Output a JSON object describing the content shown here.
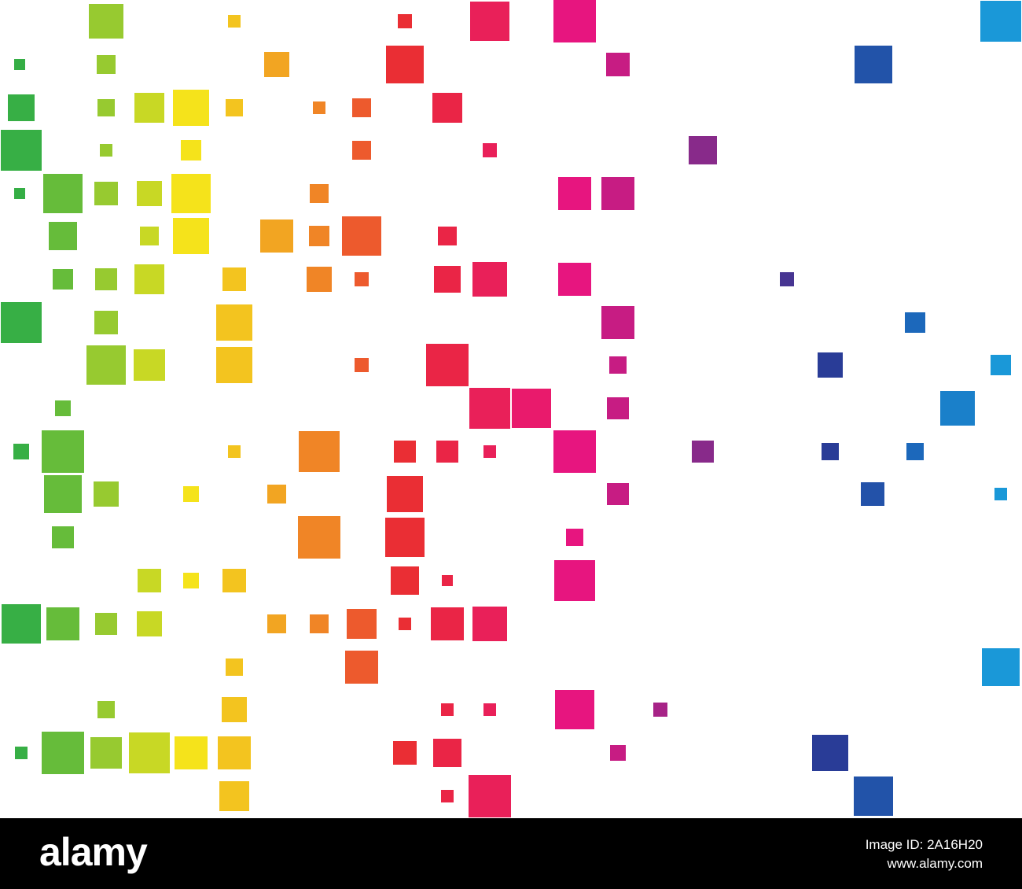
{
  "footer": {
    "brand": "alamy",
    "image_id": "Image ID: 2A16H20",
    "url": "www.alamy.com"
  }
}
